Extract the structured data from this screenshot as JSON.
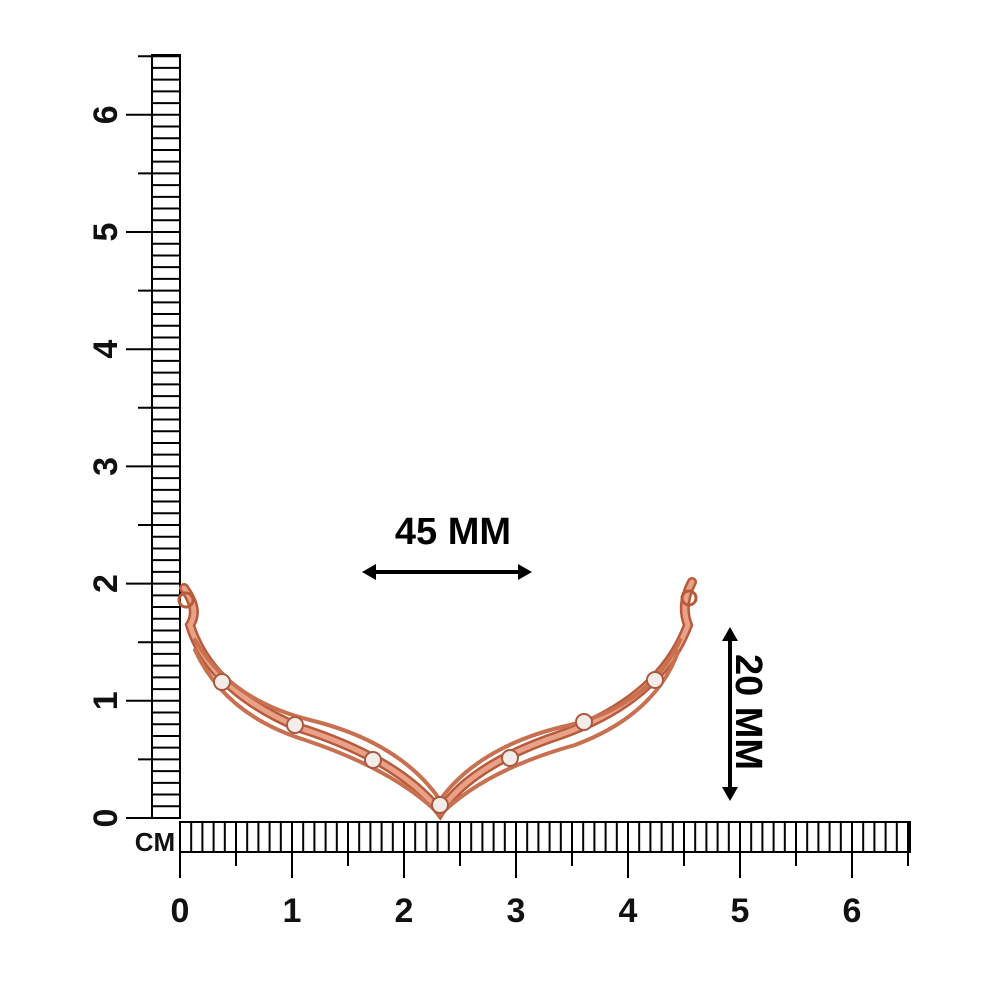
{
  "vertical_ruler": {
    "labels": [
      0,
      1,
      2,
      3,
      4,
      5,
      6
    ]
  },
  "horizontal_ruler": {
    "unit": "CM",
    "labels": [
      0,
      1,
      2,
      3,
      4,
      5,
      6
    ]
  },
  "dimensions": {
    "width": "45 MM",
    "height": "20 MM"
  }
}
